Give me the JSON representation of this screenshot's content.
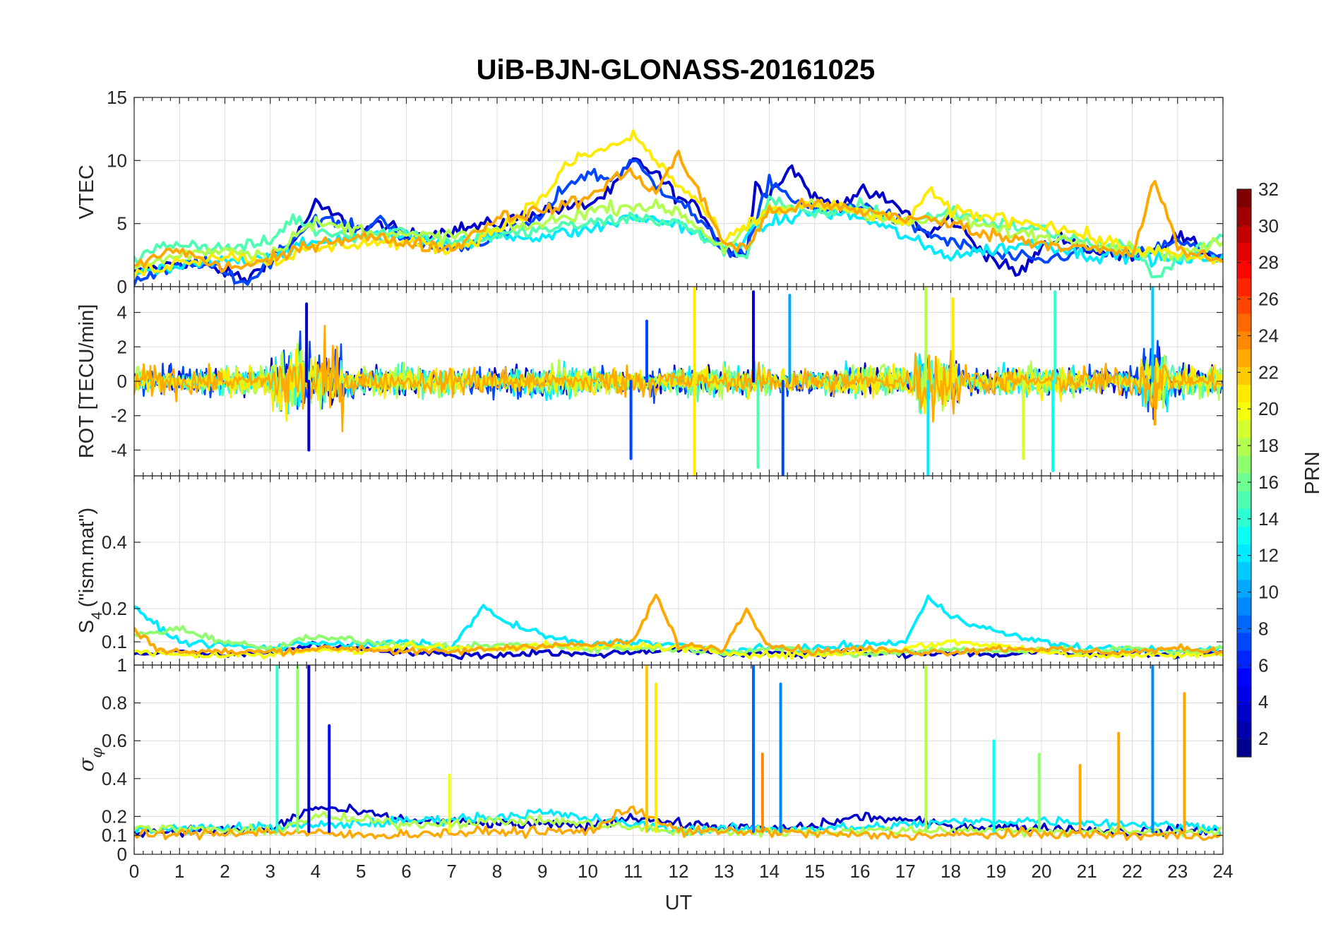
{
  "figure": {
    "title": "UiB-BJN-GLONASS-20161025"
  },
  "colormap": {
    "name": "jet",
    "colors": [
      "#00008f",
      "#0000ff",
      "#0080ff",
      "#00ffff",
      "#80ff80",
      "#ffff00",
      "#ff8000",
      "#ff0000",
      "#800000"
    ]
  },
  "chart_data": [
    {
      "type": "line",
      "panel": "vtec",
      "ylabel": "VTEC",
      "xlabel": "",
      "xlim": [
        0,
        24
      ],
      "ylim": [
        0,
        15
      ],
      "yticks": [
        0,
        5,
        10,
        15
      ],
      "xticks": [
        0,
        1,
        2,
        3,
        4,
        5,
        6,
        7,
        8,
        9,
        10,
        11,
        12,
        13,
        14,
        15,
        16,
        17,
        18,
        19,
        20,
        21,
        22,
        23,
        24
      ],
      "grid": true,
      "series": [
        {
          "prn": 3,
          "x": [
            0,
            0.5,
            1,
            2,
            2.5,
            3,
            3.5,
            4,
            4.5,
            5,
            5.5,
            6,
            7,
            8,
            9,
            10,
            10.5,
            11,
            11.5,
            12,
            12.5,
            13,
            13.5,
            13.7,
            14,
            14.5,
            15,
            15.5,
            16,
            16.5,
            17,
            17.5,
            18,
            18.5,
            19,
            19.5,
            20,
            20.5,
            21,
            21.5,
            22,
            22.5,
            23,
            24
          ],
          "y": [
            1.0,
            1.5,
            2.0,
            1.2,
            0.5,
            2.5,
            3.5,
            6.5,
            5.5,
            4.5,
            5.0,
            4.0,
            4.5,
            5.0,
            6.0,
            6.5,
            7.5,
            10.0,
            9.0,
            7.0,
            6.0,
            3.0,
            2.5,
            8.0,
            7.5,
            9.5,
            7.0,
            6.5,
            7.5,
            7.0,
            6.0,
            4.0,
            5.5,
            3.5,
            2.0,
            1.0,
            3.0,
            4.0,
            3.0,
            2.5,
            2.5,
            3.0,
            4.0,
            2.0
          ]
        },
        {
          "prn": 7,
          "x": [
            0,
            1,
            1.5,
            2,
            2.5,
            3,
            4,
            5,
            5.5,
            6,
            7,
            8,
            9,
            9.5,
            10,
            10.5,
            11,
            11.5,
            12,
            13,
            13.5,
            14,
            14.5,
            15,
            16,
            17,
            18,
            18.5,
            19,
            20,
            21,
            22,
            23,
            24
          ],
          "y": [
            0.5,
            1.5,
            2.0,
            1.0,
            0.3,
            2.0,
            5.5,
            4.5,
            5.5,
            3.5,
            3.0,
            4.0,
            5.5,
            8.0,
            9.0,
            8.5,
            10.0,
            8.0,
            7.0,
            3.0,
            2.5,
            8.5,
            7.0,
            6.0,
            6.5,
            5.0,
            3.5,
            3.0,
            2.5,
            2.0,
            3.0,
            2.5,
            3.5,
            2.5
          ]
        },
        {
          "prn": 12,
          "x": [
            0,
            1,
            2,
            3,
            4,
            5,
            6,
            7,
            8,
            9,
            10,
            11,
            12,
            13,
            14,
            15,
            16,
            17,
            17.5,
            18,
            19,
            20,
            21,
            22,
            23,
            24
          ],
          "y": [
            1.0,
            1.5,
            2.0,
            2.5,
            3.5,
            4.0,
            4.0,
            3.5,
            4.0,
            4.0,
            4.5,
            5.5,
            5.0,
            3.0,
            5.0,
            6.0,
            5.5,
            4.0,
            3.0,
            2.5,
            3.0,
            3.5,
            2.5,
            2.5,
            2.0,
            2.5
          ]
        },
        {
          "prn": 15,
          "x": [
            0,
            0.5,
            1,
            2,
            3,
            3.5,
            4,
            5,
            6,
            7,
            8,
            9,
            10,
            11,
            12,
            13,
            13.5,
            14,
            15,
            16,
            17,
            18,
            19,
            20,
            21,
            22,
            22.5,
            23,
            24
          ],
          "y": [
            2.0,
            3.0,
            3.5,
            3.0,
            3.5,
            5.5,
            4.5,
            4.0,
            4.5,
            3.5,
            4.0,
            4.5,
            5.0,
            5.5,
            5.0,
            3.0,
            2.5,
            7.0,
            5.5,
            6.5,
            5.0,
            6.0,
            5.0,
            4.5,
            3.5,
            3.0,
            1.0,
            2.0,
            4.0
          ]
        },
        {
          "prn": 18,
          "x": [
            0,
            1,
            2,
            3,
            3.5,
            4,
            5,
            6,
            7,
            8,
            9,
            10,
            11,
            12,
            13,
            14,
            15,
            16,
            17,
            18,
            19,
            20,
            21,
            22,
            23,
            24
          ],
          "y": [
            1.5,
            2.5,
            3.0,
            2.5,
            4.0,
            5.0,
            4.5,
            4.0,
            4.0,
            4.5,
            5.0,
            6.0,
            6.5,
            6.0,
            3.0,
            6.0,
            6.5,
            6.0,
            5.0,
            5.5,
            4.5,
            4.0,
            3.5,
            3.0,
            2.5,
            3.5
          ]
        },
        {
          "prn": 21,
          "x": [
            0,
            1,
            2,
            3,
            4,
            5,
            6,
            7,
            8,
            9,
            9.5,
            10,
            10.5,
            11,
            11.5,
            12,
            12.5,
            13,
            14,
            15,
            16,
            17,
            17.5,
            18,
            19,
            20,
            21,
            22,
            23,
            24
          ],
          "y": [
            1.0,
            2.0,
            2.5,
            2.0,
            3.0,
            3.5,
            3.5,
            3.0,
            4.5,
            7.0,
            9.5,
            10.5,
            11.0,
            12.0,
            10.0,
            8.0,
            6.5,
            3.5,
            6.0,
            6.5,
            6.0,
            5.0,
            7.5,
            6.0,
            5.5,
            5.0,
            4.0,
            3.0,
            2.5,
            2.0
          ]
        },
        {
          "prn": 23,
          "x": [
            0,
            0.5,
            1,
            1.5,
            2,
            3,
            4,
            5,
            6,
            7,
            8,
            9,
            10,
            10.5,
            11,
            11.5,
            12,
            12.5,
            13,
            13.5,
            14,
            15,
            16,
            17,
            18,
            19,
            20,
            21,
            22,
            22.5,
            23,
            24
          ],
          "y": [
            1.5,
            2.5,
            3.0,
            2.0,
            1.5,
            2.0,
            3.5,
            4.0,
            3.5,
            3.0,
            5.5,
            6.0,
            7.0,
            8.5,
            9.0,
            7.5,
            10.5,
            7.0,
            3.5,
            3.0,
            6.0,
            6.5,
            6.0,
            5.5,
            5.0,
            4.0,
            3.5,
            3.0,
            2.5,
            8.5,
            3.0,
            2.0
          ]
        }
      ]
    },
    {
      "type": "line",
      "panel": "rot",
      "ylabel": "ROT [TECU/min]",
      "xlabel": "",
      "xlim": [
        0,
        24
      ],
      "ylim": [
        -5.5,
        5.5
      ],
      "yticks": [
        -4,
        -2,
        0,
        2,
        4
      ],
      "grid": true,
      "spikes": [
        {
          "prn": 3,
          "x": 3.85,
          "y": -4.0
        },
        {
          "prn": 3,
          "x": 3.8,
          "y": 4.5
        },
        {
          "prn": 7,
          "x": 10.95,
          "y": -4.5
        },
        {
          "prn": 7,
          "x": 11.3,
          "y": 3.5
        },
        {
          "prn": 21,
          "x": 12.35,
          "y": -5.5
        },
        {
          "prn": 21,
          "x": 12.35,
          "y": 5.5
        },
        {
          "prn": 3,
          "x": 13.65,
          "y": 5.2
        },
        {
          "prn": 15,
          "x": 13.75,
          "y": -5.0
        },
        {
          "prn": 7,
          "x": 14.3,
          "y": -5.5
        },
        {
          "prn": 10,
          "x": 14.45,
          "y": 5.0
        },
        {
          "prn": 18,
          "x": 17.45,
          "y": 5.5
        },
        {
          "prn": 12,
          "x": 17.5,
          "y": -5.5
        },
        {
          "prn": 21,
          "x": 18.05,
          "y": 4.8
        },
        {
          "prn": 19,
          "x": 19.6,
          "y": -4.5
        },
        {
          "prn": 13,
          "x": 20.25,
          "y": -5.2
        },
        {
          "prn": 14,
          "x": 20.3,
          "y": 5.2
        },
        {
          "prn": 11,
          "x": 22.45,
          "y": 5.5
        },
        {
          "prn": 23,
          "x": 22.5,
          "y": -2.5
        }
      ]
    },
    {
      "type": "line",
      "panel": "s4",
      "ylabel": "S4 (\"ism.mat\")",
      "xlabel": "",
      "xlim": [
        0,
        24
      ],
      "ylim": [
        0.03,
        0.6
      ],
      "yticks": [
        0.1,
        0.2,
        0.4
      ],
      "grid": true,
      "series": [
        {
          "prn": 3,
          "x": [
            0,
            1,
            2,
            3,
            4,
            5,
            6,
            7,
            8,
            9,
            10,
            11,
            12,
            13,
            14,
            15,
            16,
            17,
            18,
            19,
            20,
            21,
            22,
            23,
            24
          ],
          "y": [
            0.06,
            0.07,
            0.06,
            0.07,
            0.09,
            0.08,
            0.07,
            0.06,
            0.06,
            0.07,
            0.06,
            0.07,
            0.08,
            0.06,
            0.07,
            0.06,
            0.07,
            0.06,
            0.07,
            0.06,
            0.07,
            0.06,
            0.07,
            0.06,
            0.07
          ]
        },
        {
          "prn": 12,
          "x": [
            0,
            1,
            2,
            3,
            4,
            5,
            6,
            7,
            7.7,
            8,
            9,
            10,
            11,
            12,
            13,
            14,
            15,
            16,
            17,
            17.5,
            18,
            19,
            20,
            21,
            22,
            23,
            24
          ],
          "y": [
            0.2,
            0.1,
            0.09,
            0.08,
            0.1,
            0.09,
            0.1,
            0.08,
            0.21,
            0.17,
            0.12,
            0.09,
            0.1,
            0.09,
            0.07,
            0.08,
            0.08,
            0.09,
            0.1,
            0.23,
            0.18,
            0.13,
            0.1,
            0.08,
            0.08,
            0.07,
            0.08
          ]
        },
        {
          "prn": 17,
          "x": [
            0,
            1,
            2,
            3,
            4,
            5,
            6,
            7,
            8,
            9,
            10,
            11,
            12,
            13,
            14,
            15,
            16,
            17,
            18,
            19,
            20,
            21,
            22,
            23,
            24
          ],
          "y": [
            0.12,
            0.14,
            0.1,
            0.08,
            0.12,
            0.1,
            0.09,
            0.08,
            0.09,
            0.09,
            0.08,
            0.08,
            0.08,
            0.07,
            0.08,
            0.07,
            0.06,
            0.07,
            0.08,
            0.07,
            0.08,
            0.07,
            0.08,
            0.07,
            0.08
          ]
        },
        {
          "prn": 20,
          "x": [
            0,
            1,
            2,
            3,
            4,
            5,
            6,
            7,
            8,
            9,
            10,
            11,
            12,
            13,
            14,
            15,
            16,
            17,
            18,
            19,
            20,
            21,
            22,
            23,
            24
          ],
          "y": [
            0.07,
            0.06,
            0.06,
            0.06,
            0.08,
            0.07,
            0.09,
            0.08,
            0.08,
            0.09,
            0.08,
            0.09,
            0.08,
            0.07,
            0.06,
            0.06,
            0.07,
            0.08,
            0.1,
            0.09,
            0.07,
            0.06,
            0.06,
            0.06,
            0.06
          ]
        },
        {
          "prn": 23,
          "x": [
            0,
            0.5,
            1,
            2,
            3,
            4,
            5,
            6,
            7,
            8,
            9,
            10,
            11,
            11.5,
            12,
            13,
            13.5,
            14,
            15,
            16,
            17,
            18,
            19,
            20,
            21,
            22,
            23,
            24
          ],
          "y": [
            0.14,
            0.08,
            0.07,
            0.07,
            0.07,
            0.08,
            0.08,
            0.07,
            0.07,
            0.08,
            0.09,
            0.09,
            0.1,
            0.24,
            0.09,
            0.08,
            0.2,
            0.09,
            0.07,
            0.08,
            0.07,
            0.07,
            0.08,
            0.08,
            0.07,
            0.07,
            0.08,
            0.07
          ]
        }
      ]
    },
    {
      "type": "line",
      "panel": "sigma_phi",
      "ylabel": "σφ",
      "xlabel": "UT",
      "xlim": [
        0,
        24
      ],
      "ylim": [
        0,
        1
      ],
      "yticks": [
        0,
        0.1,
        0.2,
        0.4,
        0.6,
        0.8,
        1
      ],
      "grid": true,
      "spikes": [
        {
          "prn": 14,
          "x": 3.15,
          "y": 1.0
        },
        {
          "prn": 17,
          "x": 3.6,
          "y": 1.0
        },
        {
          "prn": 3,
          "x": 3.85,
          "y": 1.0
        },
        {
          "prn": 5,
          "x": 4.3,
          "y": 0.68
        },
        {
          "prn": 20,
          "x": 6.95,
          "y": 0.42
        },
        {
          "prn": 22,
          "x": 11.3,
          "y": 1.0
        },
        {
          "prn": 21,
          "x": 11.5,
          "y": 0.9
        },
        {
          "prn": 8,
          "x": 13.65,
          "y": 1.0
        },
        {
          "prn": 24,
          "x": 13.85,
          "y": 0.53
        },
        {
          "prn": 9,
          "x": 14.25,
          "y": 0.9
        },
        {
          "prn": 18,
          "x": 17.45,
          "y": 1.0
        },
        {
          "prn": 13,
          "x": 18.95,
          "y": 0.6
        },
        {
          "prn": 17,
          "x": 19.95,
          "y": 0.53
        },
        {
          "prn": 23,
          "x": 20.85,
          "y": 0.47
        },
        {
          "prn": 23,
          "x": 21.7,
          "y": 0.64
        },
        {
          "prn": 9,
          "x": 22.45,
          "y": 1.0
        },
        {
          "prn": 23,
          "x": 23.15,
          "y": 0.85
        }
      ]
    }
  ],
  "colorbar": {
    "label": "PRN",
    "range": [
      1,
      32
    ],
    "ticks": [
      2,
      4,
      6,
      8,
      10,
      12,
      14,
      16,
      18,
      20,
      22,
      24,
      26,
      28,
      30,
      32
    ]
  }
}
